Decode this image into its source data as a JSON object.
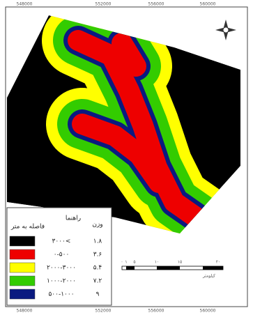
{
  "map": {
    "top_coords": [
      "548000",
      "552000",
      "556000",
      "560000"
    ],
    "bottom_coords": [
      "548000",
      "552000",
      "556000",
      "560000"
    ],
    "legend": {
      "title": "راهنما",
      "subtitle": "فاصله به متر",
      "weight_header": "وزن",
      "rows": [
        {
          "class": "۳۰۰۰<",
          "weight": "۱.۸"
        },
        {
          "class": "۰-۵۰۰",
          "weight": "۳.۶"
        },
        {
          "class": "۲۰۰۰-۳۰۰۰",
          "weight": "۵.۴"
        },
        {
          "class": "۱۰۰۰-۲۰۰۰",
          "weight": "۷.۲"
        },
        {
          "class": "۵۰۰-۱۰۰۰",
          "weight": "۹"
        }
      ]
    },
    "scale": {
      "ticks": [
        "۰",
        "۱",
        "۵",
        "۱۰",
        "۱۵",
        "۲۰"
      ],
      "unit": "کیلومتر"
    }
  }
}
